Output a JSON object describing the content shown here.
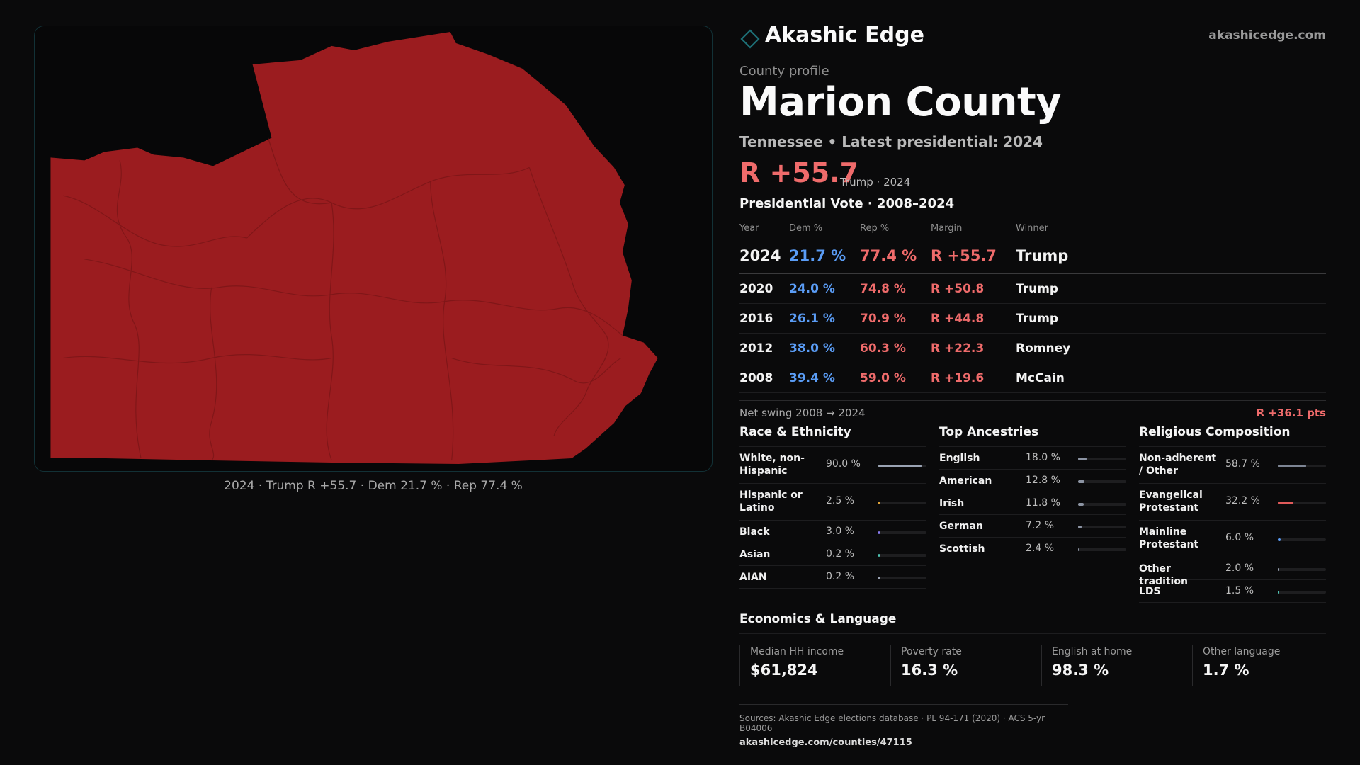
{
  "map": {
    "caption": "2024 · Trump R +55.7 · Dem 21.7 % · Rep 77.4 %",
    "fill_color": "#9b1c1f"
  },
  "header": {
    "brand": "Akashic Edge",
    "site": "akashicedge.com",
    "logo_icon": "diamond-outline-icon",
    "accent_color": "#1d6f76"
  },
  "profile": {
    "eyebrow": "County profile",
    "title": "Marion County",
    "subtitle": "Tennessee • Latest presidential: 2024",
    "margin": "R +55.7",
    "margin_note": "Trump · 2024"
  },
  "vote": {
    "title": "Presidential Vote · 2008–2024",
    "headers": [
      "Year",
      "Dem %",
      "Rep %",
      "Margin",
      "Winner"
    ],
    "rows": [
      {
        "year": "2024",
        "dem": "21.7 %",
        "rep": "77.4 %",
        "margin": "R +55.7",
        "winner": "Trump"
      },
      {
        "year": "2020",
        "dem": "24.0 %",
        "rep": "74.8 %",
        "margin": "R +50.8",
        "winner": "Trump"
      },
      {
        "year": "2016",
        "dem": "26.1 %",
        "rep": "70.9 %",
        "margin": "R +44.8",
        "winner": "Trump"
      },
      {
        "year": "2012",
        "dem": "38.0 %",
        "rep": "60.3 %",
        "margin": "R +22.3",
        "winner": "Romney"
      },
      {
        "year": "2008",
        "dem": "39.4 %",
        "rep": "59.0 %",
        "margin": "R +19.6",
        "winner": "McCain"
      }
    ],
    "dem_color": "#5a9cf5",
    "rep_color": "#ef6b6b"
  },
  "swing": {
    "label": "Net swing 2008 → 2024",
    "value": "R +36.1 pts"
  },
  "race": {
    "title": "Race & Ethnicity",
    "items": [
      {
        "label": "White, non-Hispanic",
        "pct": "90.0 %",
        "value": 90.0,
        "color": "#9aa3b3"
      },
      {
        "label": "Hispanic or Latino",
        "pct": "2.5 %",
        "value": 2.5,
        "color": "#e0a43a"
      },
      {
        "label": "Black",
        "pct": "3.0 %",
        "value": 3.0,
        "color": "#8a7cf0"
      },
      {
        "label": "Asian",
        "pct": "0.2 %",
        "value": 0.2,
        "color": "#4fc3b3"
      },
      {
        "label": "AIAN",
        "pct": "0.2 %",
        "value": 0.2,
        "color": "#9aa3b3"
      }
    ]
  },
  "ancestry": {
    "title": "Top Ancestries",
    "items": [
      {
        "label": "English",
        "pct": "18.0 %",
        "value": 18.0,
        "color": "#8c94a3"
      },
      {
        "label": "American",
        "pct": "12.8 %",
        "value": 12.8,
        "color": "#8c94a3"
      },
      {
        "label": "Irish",
        "pct": "11.8 %",
        "value": 11.8,
        "color": "#8c94a3"
      },
      {
        "label": "German",
        "pct": "7.2 %",
        "value": 7.2,
        "color": "#8c94a3"
      },
      {
        "label": "Scottish",
        "pct": "2.4 %",
        "value": 2.4,
        "color": "#8c94a3"
      }
    ]
  },
  "religion": {
    "title": "Religious Composition",
    "items": [
      {
        "label": "Non-adherent / Other",
        "pct": "58.7 %",
        "value": 58.7,
        "color": "#7d8594"
      },
      {
        "label": "Evangelical Protestant",
        "pct": "32.2 %",
        "value": 32.2,
        "color": "#e05a5a"
      },
      {
        "label": "Mainline Protestant",
        "pct": "6.0 %",
        "value": 6.0,
        "color": "#5a9cf5"
      },
      {
        "label": "Other tradition",
        "pct": "2.0 %",
        "value": 2.0,
        "color": "#9aa3b3"
      },
      {
        "label": "LDS",
        "pct": "1.5 %",
        "value": 1.5,
        "color": "#4fc3b3"
      }
    ]
  },
  "econ": {
    "title": "Economics & Language",
    "items": [
      {
        "label": "Median HH income",
        "value": "$61,824"
      },
      {
        "label": "Poverty rate",
        "value": "16.3 %"
      },
      {
        "label": "English at home",
        "value": "98.3 %"
      },
      {
        "label": "Other language",
        "value": "1.7 %"
      }
    ]
  },
  "sources": {
    "line1": "Sources: Akashic Edge elections database · PL 94-171 (2020) · ACS 5-yr B04006",
    "line2": "akashicedge.com/counties/47115"
  }
}
